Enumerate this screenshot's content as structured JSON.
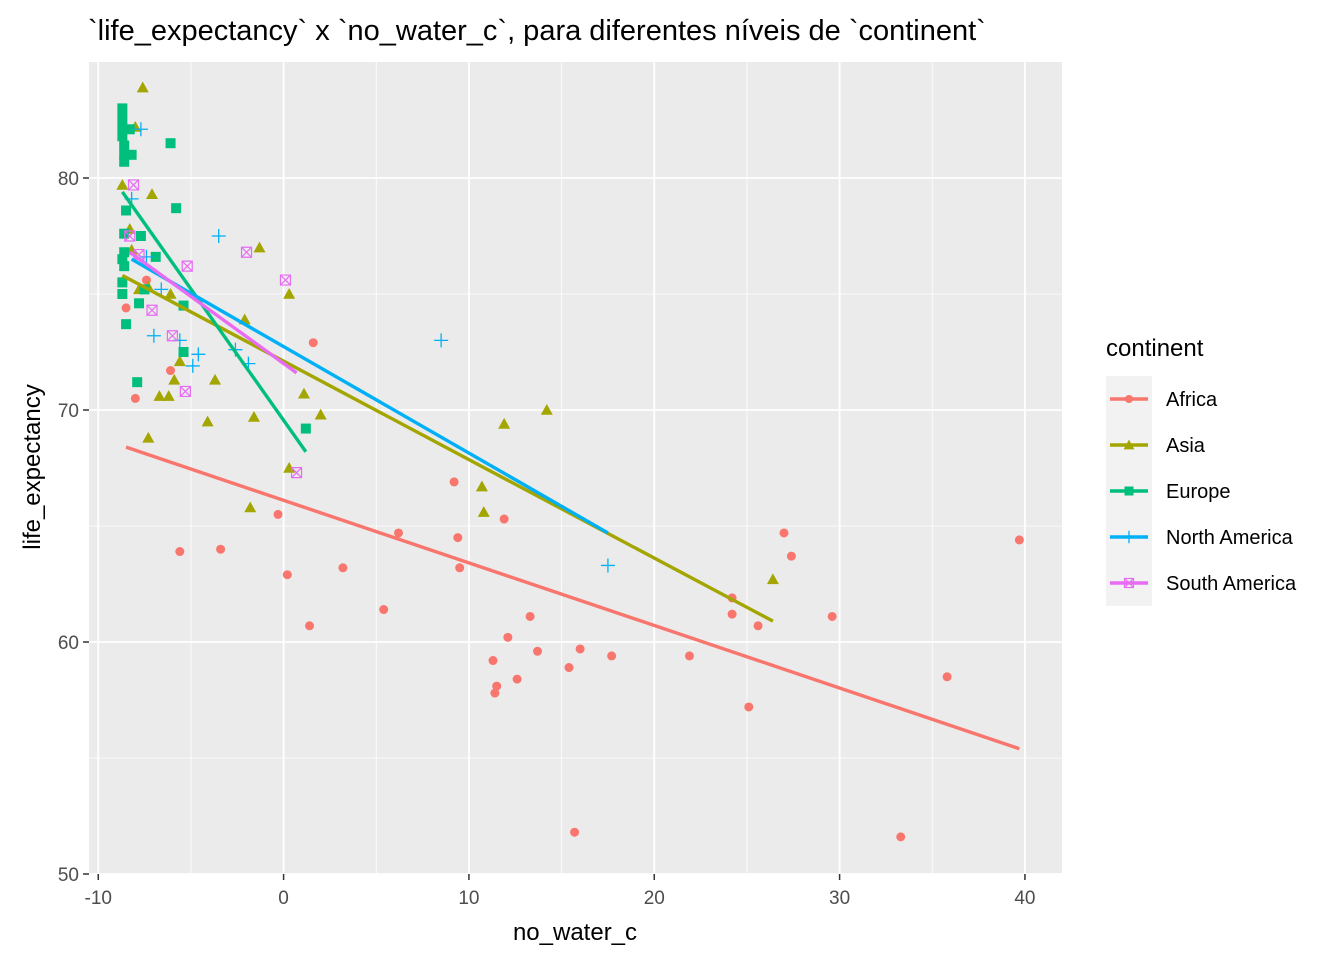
{
  "chart_data": {
    "type": "scatter",
    "title": "`life_expectancy` x `no_water_c`, para diferentes níveis de `continent`",
    "xlabel": "no_water_c",
    "ylabel": "life_expectancy",
    "xlim": [
      -10.5,
      42
    ],
    "ylim": [
      50,
      85
    ],
    "x_ticks": [
      -10,
      0,
      10,
      20,
      30,
      40
    ],
    "y_ticks": [
      50,
      60,
      70,
      80
    ],
    "x_tick_labels": [
      "-10",
      "0",
      "10",
      "20",
      "30",
      "40"
    ],
    "y_tick_labels": [
      "50",
      "60",
      "70",
      "80"
    ],
    "grid": true,
    "legend_position": "right",
    "legend_title": "continent",
    "series": [
      {
        "name": "Africa",
        "color": "#F8766D",
        "marker": "circle",
        "points": [
          [
            -8.5,
            74.4
          ],
          [
            -8.0,
            70.5
          ],
          [
            -7.4,
            75.6
          ],
          [
            -6.1,
            71.7
          ],
          [
            -5.6,
            63.9
          ],
          [
            -3.4,
            64.0
          ],
          [
            -0.3,
            65.5
          ],
          [
            0.2,
            62.9
          ],
          [
            1.4,
            60.7
          ],
          [
            1.6,
            72.9
          ],
          [
            3.2,
            63.2
          ],
          [
            5.4,
            61.4
          ],
          [
            6.2,
            64.7
          ],
          [
            9.2,
            66.9
          ],
          [
            9.4,
            64.5
          ],
          [
            9.5,
            63.2
          ],
          [
            11.3,
            59.2
          ],
          [
            11.4,
            57.8
          ],
          [
            11.5,
            58.1
          ],
          [
            11.9,
            65.3
          ],
          [
            12.1,
            60.2
          ],
          [
            12.6,
            58.4
          ],
          [
            13.3,
            61.1
          ],
          [
            13.7,
            59.6
          ],
          [
            15.4,
            58.9
          ],
          [
            15.7,
            51.8
          ],
          [
            16.0,
            59.7
          ],
          [
            17.7,
            59.4
          ],
          [
            21.9,
            59.4
          ],
          [
            24.2,
            61.9
          ],
          [
            24.2,
            61.2
          ],
          [
            25.1,
            57.2
          ],
          [
            25.6,
            60.7
          ],
          [
            27.0,
            64.7
          ],
          [
            27.4,
            63.7
          ],
          [
            29.6,
            61.1
          ],
          [
            33.3,
            51.6
          ],
          [
            35.8,
            58.5
          ],
          [
            39.7,
            64.4
          ]
        ],
        "trend": [
          [
            -8.5,
            68.4
          ],
          [
            39.7,
            55.4
          ]
        ]
      },
      {
        "name": "Asia",
        "color": "#A3A500",
        "marker": "triangle",
        "points": [
          [
            -8.7,
            79.7
          ],
          [
            -8.3,
            77.8
          ],
          [
            -8.2,
            76.9
          ],
          [
            -8.0,
            82.2
          ],
          [
            -7.8,
            75.2
          ],
          [
            -7.6,
            83.9
          ],
          [
            -7.3,
            75.3
          ],
          [
            -7.3,
            68.8
          ],
          [
            -7.1,
            79.3
          ],
          [
            -6.7,
            70.6
          ],
          [
            -6.2,
            70.6
          ],
          [
            -6.1,
            75.0
          ],
          [
            -5.9,
            71.3
          ],
          [
            -5.6,
            72.1
          ],
          [
            -4.1,
            69.5
          ],
          [
            -3.7,
            71.3
          ],
          [
            -2.1,
            73.9
          ],
          [
            -1.8,
            65.8
          ],
          [
            -1.6,
            69.7
          ],
          [
            -1.3,
            77.0
          ],
          [
            0.3,
            75.0
          ],
          [
            0.3,
            67.5
          ],
          [
            1.1,
            70.7
          ],
          [
            2.0,
            69.8
          ],
          [
            10.7,
            66.7
          ],
          [
            10.8,
            65.6
          ],
          [
            11.9,
            69.4
          ],
          [
            14.2,
            70.0
          ],
          [
            26.4,
            62.7
          ]
        ],
        "trend": [
          [
            -8.7,
            75.8
          ],
          [
            26.4,
            60.9
          ]
        ]
      },
      {
        "name": "Europe",
        "color": "#00BF7D",
        "marker": "square",
        "points": [
          [
            -8.7,
            83.0
          ],
          [
            -8.7,
            82.6
          ],
          [
            -8.7,
            82.2
          ],
          [
            -8.7,
            81.8
          ],
          [
            -8.6,
            81.4
          ],
          [
            -8.6,
            81.0
          ],
          [
            -8.6,
            80.7
          ],
          [
            -8.5,
            78.6
          ],
          [
            -8.6,
            77.6
          ],
          [
            -8.6,
            76.8
          ],
          [
            -8.7,
            76.5
          ],
          [
            -8.6,
            76.2
          ],
          [
            -8.7,
            75.5
          ],
          [
            -8.7,
            75.0
          ],
          [
            -8.5,
            73.7
          ],
          [
            -8.3,
            82.1
          ],
          [
            -8.2,
            81.0
          ],
          [
            -7.9,
            71.2
          ],
          [
            -7.8,
            74.6
          ],
          [
            -7.7,
            77.5
          ],
          [
            -7.5,
            75.2
          ],
          [
            -6.9,
            76.6
          ],
          [
            -6.1,
            81.5
          ],
          [
            -5.8,
            78.7
          ],
          [
            -5.4,
            72.5
          ],
          [
            -5.4,
            74.5
          ],
          [
            1.2,
            69.2
          ]
        ],
        "trend": [
          [
            -8.7,
            79.4
          ],
          [
            1.2,
            68.2
          ]
        ]
      },
      {
        "name": "North America",
        "color": "#00B0F6",
        "marker": "plus",
        "points": [
          [
            -8.2,
            79.1
          ],
          [
            -7.7,
            82.1
          ],
          [
            -7.4,
            76.6
          ],
          [
            -7.0,
            73.2
          ],
          [
            -6.6,
            75.2
          ],
          [
            -5.6,
            73.0
          ],
          [
            -4.9,
            71.9
          ],
          [
            -4.6,
            72.4
          ],
          [
            -3.5,
            77.5
          ],
          [
            -2.6,
            72.6
          ],
          [
            -1.9,
            72.0
          ],
          [
            8.5,
            73.0
          ],
          [
            17.5,
            63.3
          ]
        ],
        "trend": [
          [
            -8.2,
            76.5
          ],
          [
            17.5,
            64.7
          ]
        ]
      },
      {
        "name": "South America",
        "color": "#E76BF3",
        "marker": "boxcross",
        "points": [
          [
            -8.3,
            77.5
          ],
          [
            -8.1,
            79.7
          ],
          [
            -7.8,
            76.7
          ],
          [
            -7.1,
            74.3
          ],
          [
            -6.0,
            73.2
          ],
          [
            -5.3,
            70.8
          ],
          [
            -5.2,
            76.2
          ],
          [
            -2.0,
            76.8
          ],
          [
            0.1,
            75.6
          ],
          [
            0.7,
            67.3
          ]
        ],
        "trend": [
          [
            -8.3,
            76.8
          ],
          [
            0.7,
            71.6
          ]
        ]
      }
    ]
  }
}
